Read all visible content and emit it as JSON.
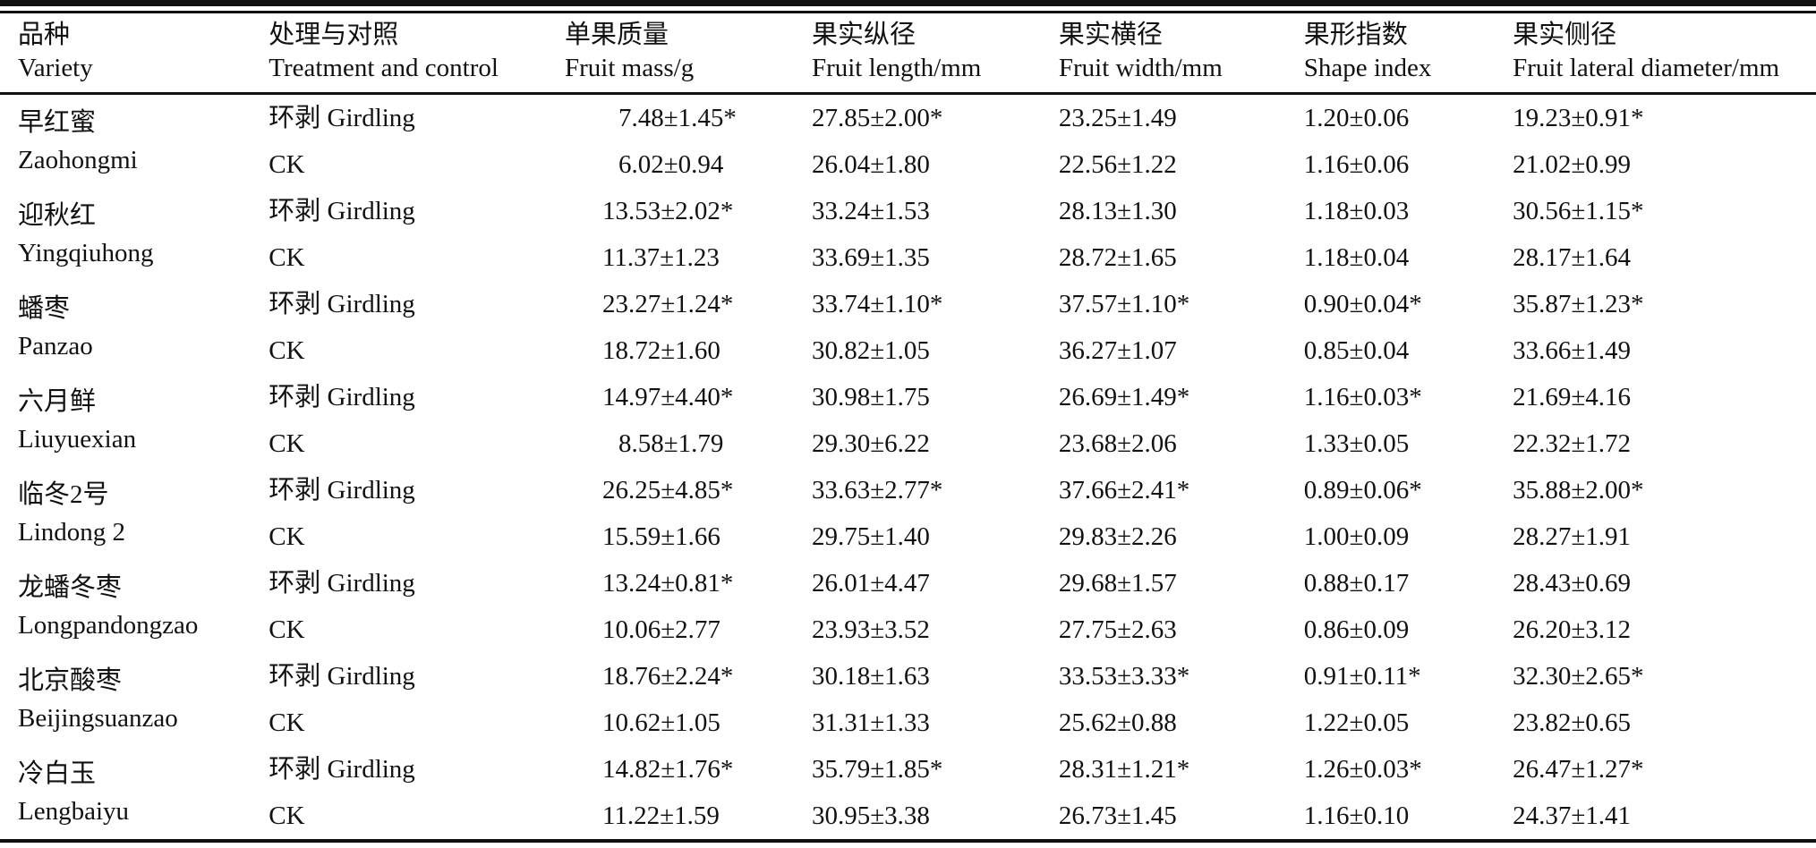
{
  "colors": {
    "background": "#ffffff",
    "text": "#111111",
    "rule": "#111111"
  },
  "table": {
    "header": [
      {
        "zh": "品种",
        "en": "Variety"
      },
      {
        "zh": "处理与对照",
        "en": "Treatment and control"
      },
      {
        "zh": "单果质量",
        "en": "Fruit mass/g"
      },
      {
        "zh": "果实纵径",
        "en": "Fruit length/mm"
      },
      {
        "zh": "果实横径",
        "en": "Fruit width/mm"
      },
      {
        "zh": "果形指数",
        "en": "Shape index"
      },
      {
        "zh": "果实侧径",
        "en": "Fruit lateral diameter/mm"
      }
    ],
    "groups": [
      {
        "variety_zh": "早红蜜",
        "variety_en": "Zaohongmi",
        "rows": [
          {
            "treatment": "环剥 Girdling",
            "values": [
              "7.48±1.45*",
              "27.85±2.00*",
              "23.25±1.49",
              "1.20±0.06",
              "19.23±0.91*"
            ]
          },
          {
            "treatment": "CK",
            "values": [
              "6.02±0.94",
              "26.04±1.80",
              "22.56±1.22",
              "1.16±0.06",
              "21.02±0.99"
            ]
          }
        ]
      },
      {
        "variety_zh": "迎秋红",
        "variety_en": "Yingqiuhong",
        "rows": [
          {
            "treatment": "环剥 Girdling",
            "values": [
              "13.53±2.02*",
              "33.24±1.53",
              "28.13±1.30",
              "1.18±0.03",
              "30.56±1.15*"
            ]
          },
          {
            "treatment": "CK",
            "values": [
              "11.37±1.23",
              "33.69±1.35",
              "28.72±1.65",
              "1.18±0.04",
              "28.17±1.64"
            ]
          }
        ]
      },
      {
        "variety_zh": "蟠枣",
        "variety_en": "Panzao",
        "rows": [
          {
            "treatment": "环剥 Girdling",
            "values": [
              "23.27±1.24*",
              "33.74±1.10*",
              "37.57±1.10*",
              "0.90±0.04*",
              "35.87±1.23*"
            ]
          },
          {
            "treatment": "CK",
            "values": [
              "18.72±1.60",
              "30.82±1.05",
              "36.27±1.07",
              "0.85±0.04",
              "33.66±1.49"
            ]
          }
        ]
      },
      {
        "variety_zh": "六月鲜",
        "variety_en": "Liuyuexian",
        "rows": [
          {
            "treatment": "环剥 Girdling",
            "values": [
              "14.97±4.40*",
              "30.98±1.75",
              "26.69±1.49*",
              "1.16±0.03*",
              "21.69±4.16"
            ]
          },
          {
            "treatment": "CK",
            "values": [
              "8.58±1.79",
              "29.30±6.22",
              "23.68±2.06",
              "1.33±0.05",
              "22.32±1.72"
            ]
          }
        ]
      },
      {
        "variety_zh": "临冬2号",
        "variety_en": "Lindong 2",
        "rows": [
          {
            "treatment": "环剥 Girdling",
            "values": [
              "26.25±4.85*",
              "33.63±2.77*",
              "37.66±2.41*",
              "0.89±0.06*",
              "35.88±2.00*"
            ]
          },
          {
            "treatment": "CK",
            "values": [
              "15.59±1.66",
              "29.75±1.40",
              "29.83±2.26",
              "1.00±0.09",
              "28.27±1.91"
            ]
          }
        ]
      },
      {
        "variety_zh": "龙蟠冬枣",
        "variety_en": "Longpandongzao",
        "rows": [
          {
            "treatment": "环剥 Girdling",
            "values": [
              "13.24±0.81*",
              "26.01±4.47",
              "29.68±1.57",
              "0.88±0.17",
              "28.43±0.69"
            ]
          },
          {
            "treatment": "CK",
            "values": [
              "10.06±2.77",
              "23.93±3.52",
              "27.75±2.63",
              "0.86±0.09",
              "26.20±3.12"
            ]
          }
        ]
      },
      {
        "variety_zh": "北京酸枣",
        "variety_en": "Beijingsuanzao",
        "rows": [
          {
            "treatment": "环剥 Girdling",
            "values": [
              "18.76±2.24*",
              "30.18±1.63",
              "33.53±3.33*",
              "0.91±0.11*",
              "32.30±2.65*"
            ]
          },
          {
            "treatment": "CK",
            "values": [
              "10.62±1.05",
              "31.31±1.33",
              "25.62±0.88",
              "1.22±0.05",
              "23.82±0.65"
            ]
          }
        ]
      },
      {
        "variety_zh": "冷白玉",
        "variety_en": "Lengbaiyu",
        "rows": [
          {
            "treatment": "环剥 Girdling",
            "values": [
              "14.82±1.76*",
              "35.79±1.85*",
              "28.31±1.21*",
              "1.26±0.03*",
              "26.47±1.27*"
            ]
          },
          {
            "treatment": "CK",
            "values": [
              "11.22±1.59",
              "30.95±3.38",
              "26.73±1.45",
              "1.16±0.10",
              "24.37±1.41"
            ]
          }
        ]
      }
    ]
  }
}
